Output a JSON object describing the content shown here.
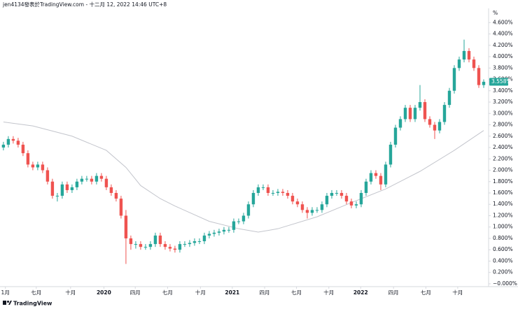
{
  "header": "jen4134發表於TradingView.com - 十二月 12, 2022 14:46 UTC+8",
  "footer": "TradingView",
  "chart_data": {
    "type": "candlestick",
    "y_unit": "%",
    "up_color": "#26a69a",
    "down_color": "#ef5350",
    "xlim": [
      -0.7,
      99
    ],
    "ylim": [
      -0.025,
      4.85
    ],
    "xticks": [
      {
        "value": 0.4,
        "label": "1月"
      },
      {
        "value": 6.7,
        "label": "七月"
      },
      {
        "value": 13.7,
        "label": "十月"
      },
      {
        "value": 20.5,
        "label": "2020"
      },
      {
        "value": 26.9,
        "label": "四月"
      },
      {
        "value": 33.5,
        "label": "七月"
      },
      {
        "value": 40.2,
        "label": "十月"
      },
      {
        "value": 46.7,
        "label": "2021"
      },
      {
        "value": 53.3,
        "label": "四月"
      },
      {
        "value": 59.8,
        "label": "七月"
      },
      {
        "value": 66.4,
        "label": "十月"
      },
      {
        "value": 72.9,
        "label": "2022"
      },
      {
        "value": 79.6,
        "label": "四月"
      },
      {
        "value": 86.2,
        "label": "七月"
      },
      {
        "value": 92.7,
        "label": "十月"
      }
    ],
    "yticks": [
      {
        "value": 0,
        "label": "−0.000%"
      },
      {
        "value": 0.2,
        "label": "0.200%"
      },
      {
        "value": 0.4,
        "label": "0.400%"
      },
      {
        "value": 0.6,
        "label": "0.600%"
      },
      {
        "value": 0.8,
        "label": "0.800%"
      },
      {
        "value": 1.0,
        "label": "1.000%"
      },
      {
        "value": 1.2,
        "label": "1.200%"
      },
      {
        "value": 1.4,
        "label": "1.400%"
      },
      {
        "value": 1.6,
        "label": "1.600%"
      },
      {
        "value": 1.8,
        "label": "1.800%"
      },
      {
        "value": 2.0,
        "label": "2.000%"
      },
      {
        "value": 2.2,
        "label": "2.200%"
      },
      {
        "value": 2.4,
        "label": "2.400%"
      },
      {
        "value": 2.6,
        "label": "2.600%"
      },
      {
        "value": 2.8,
        "label": "2.800%"
      },
      {
        "value": 3.0,
        "label": "3.000%"
      },
      {
        "value": 3.2,
        "label": "3.200%"
      },
      {
        "value": 3.4,
        "label": "3.400%"
      },
      {
        "value": 3.6,
        "label": "3.600%"
      },
      {
        "value": 3.8,
        "label": "3.800%"
      },
      {
        "value": 4.0,
        "label": "4.000%"
      },
      {
        "value": 4.2,
        "label": "4.200%"
      },
      {
        "value": 4.4,
        "label": "4.400%"
      },
      {
        "value": 4.6,
        "label": "4.600%"
      }
    ],
    "open": [
      2.4,
      2.45,
      2.55,
      2.52,
      2.45,
      2.3,
      2.1,
      2.05,
      2.1,
      2.0,
      1.8,
      1.55,
      1.55,
      1.75,
      1.65,
      1.7,
      1.8,
      1.85,
      1.85,
      1.8,
      1.9,
      1.85,
      1.7,
      1.6,
      1.5,
      1.2,
      0.8,
      0.7,
      0.7,
      0.65,
      0.65,
      0.7,
      0.85,
      0.7,
      0.65,
      0.62,
      0.6,
      0.7,
      0.7,
      0.72,
      0.75,
      0.75,
      0.85,
      0.88,
      0.9,
      0.92,
      0.95,
      0.95,
      1.1,
      1.1,
      1.2,
      1.4,
      1.6,
      1.7,
      1.7,
      1.6,
      1.6,
      1.62,
      1.6,
      1.55,
      1.45,
      1.4,
      1.3,
      1.25,
      1.3,
      1.3,
      1.4,
      1.55,
      1.6,
      1.6,
      1.55,
      1.45,
      1.38,
      1.4,
      1.6,
      1.8,
      1.95,
      1.9,
      1.75,
      2.1,
      2.45,
      2.75,
      2.9,
      3.1,
      2.9,
      3.1,
      3.2,
      2.9,
      2.8,
      2.7,
      2.85,
      3.15,
      3.4,
      3.8,
      3.95,
      4.1,
      3.95,
      3.8,
      3.5
    ],
    "high": [
      2.5,
      2.6,
      2.6,
      2.57,
      2.5,
      2.35,
      2.15,
      2.15,
      2.15,
      2.05,
      1.85,
      1.6,
      1.8,
      1.8,
      1.75,
      1.85,
      1.9,
      1.9,
      1.9,
      1.95,
      1.95,
      1.9,
      1.75,
      1.65,
      1.55,
      1.3,
      0.85,
      0.75,
      0.75,
      0.7,
      0.75,
      0.9,
      0.9,
      0.75,
      0.7,
      0.67,
      0.75,
      0.75,
      0.77,
      0.8,
      0.8,
      0.9,
      0.93,
      0.95,
      0.97,
      1.0,
      1.0,
      1.15,
      1.15,
      1.25,
      1.45,
      1.65,
      1.75,
      1.75,
      1.75,
      1.65,
      1.67,
      1.67,
      1.65,
      1.6,
      1.5,
      1.45,
      1.35,
      1.35,
      1.35,
      1.45,
      1.6,
      1.65,
      1.65,
      1.65,
      1.6,
      1.5,
      1.45,
      1.65,
      1.85,
      2.0,
      2.0,
      1.95,
      2.15,
      2.5,
      2.8,
      2.95,
      3.15,
      3.15,
      3.15,
      3.5,
      3.25,
      2.95,
      2.85,
      2.9,
      3.2,
      3.45,
      3.85,
      4.0,
      4.3,
      4.15,
      4.0,
      3.85,
      3.6
    ],
    "low": [
      2.35,
      2.4,
      2.47,
      2.4,
      2.25,
      2.05,
      2.0,
      2.0,
      1.95,
      1.75,
      1.5,
      1.45,
      1.5,
      1.6,
      1.6,
      1.65,
      1.75,
      1.8,
      1.75,
      1.75,
      1.8,
      1.65,
      1.55,
      1.45,
      1.15,
      0.35,
      0.6,
      0.62,
      0.6,
      0.6,
      0.6,
      0.65,
      0.65,
      0.6,
      0.57,
      0.55,
      0.55,
      0.65,
      0.65,
      0.67,
      0.7,
      0.7,
      0.8,
      0.83,
      0.85,
      0.87,
      0.9,
      0.9,
      1.05,
      1.05,
      1.15,
      1.35,
      1.55,
      1.65,
      1.55,
      1.55,
      1.55,
      1.55,
      1.5,
      1.4,
      1.35,
      1.25,
      1.15,
      1.2,
      1.25,
      1.25,
      1.35,
      1.5,
      1.55,
      1.5,
      1.4,
      1.33,
      1.33,
      1.35,
      1.55,
      1.75,
      1.85,
      1.65,
      1.7,
      2.05,
      2.4,
      2.7,
      2.85,
      2.85,
      2.85,
      3.05,
      2.85,
      2.75,
      2.55,
      2.65,
      2.8,
      3.1,
      3.35,
      3.75,
      3.9,
      3.9,
      3.75,
      3.45,
      3.45
    ],
    "close": [
      2.45,
      2.55,
      2.52,
      2.45,
      2.3,
      2.1,
      2.05,
      2.1,
      2.0,
      1.8,
      1.55,
      1.55,
      1.75,
      1.65,
      1.7,
      1.8,
      1.85,
      1.85,
      1.8,
      1.9,
      1.85,
      1.7,
      1.6,
      1.5,
      1.2,
      0.8,
      0.7,
      0.7,
      0.65,
      0.65,
      0.7,
      0.85,
      0.7,
      0.65,
      0.62,
      0.6,
      0.7,
      0.7,
      0.72,
      0.75,
      0.75,
      0.85,
      0.88,
      0.9,
      0.92,
      0.95,
      0.95,
      1.1,
      1.1,
      1.2,
      1.4,
      1.6,
      1.7,
      1.7,
      1.6,
      1.6,
      1.62,
      1.6,
      1.55,
      1.45,
      1.4,
      1.3,
      1.25,
      1.3,
      1.3,
      1.4,
      1.55,
      1.6,
      1.6,
      1.55,
      1.45,
      1.38,
      1.4,
      1.6,
      1.8,
      1.95,
      1.9,
      1.75,
      2.1,
      2.45,
      2.75,
      2.9,
      3.1,
      2.9,
      3.1,
      3.2,
      2.9,
      2.8,
      2.7,
      2.85,
      3.15,
      3.4,
      3.8,
      3.95,
      4.1,
      3.95,
      3.8,
      3.5,
      3.558
    ],
    "moving_average": {
      "color": "#c3c5cc",
      "x": [
        0,
        6,
        14,
        21,
        25,
        28,
        32,
        35,
        42,
        48,
        52,
        56,
        64,
        71,
        78,
        85,
        92,
        98
      ],
      "values": [
        2.85,
        2.78,
        2.6,
        2.35,
        2.05,
        1.73,
        1.5,
        1.37,
        1.1,
        0.97,
        0.91,
        0.97,
        1.18,
        1.43,
        1.67,
        1.98,
        2.35,
        2.7
      ]
    },
    "last_price": {
      "value": 3.558,
      "label": "3.558%"
    }
  }
}
